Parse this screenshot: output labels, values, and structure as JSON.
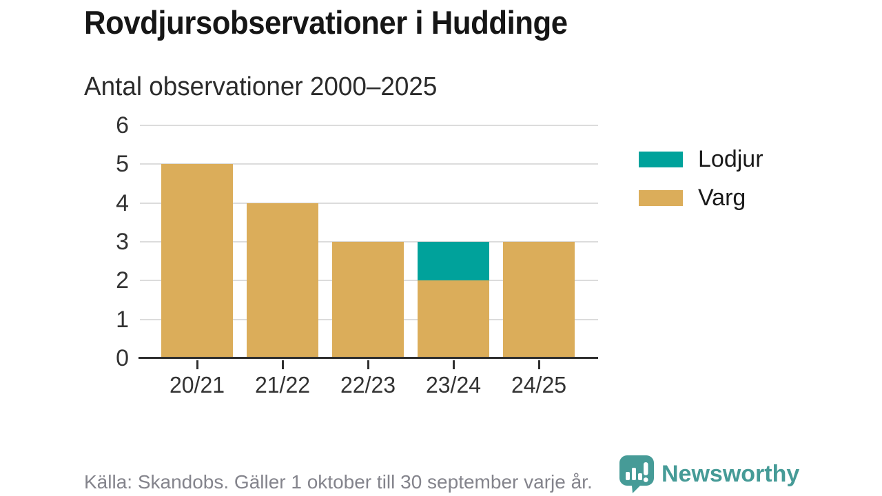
{
  "header": {
    "title": "Rovdjursobservationer i Huddinge",
    "subtitle": "Antal observationer 2000–2025"
  },
  "chart_data": {
    "type": "bar",
    "stacked": true,
    "title": "Rovdjursobservationer i Huddinge",
    "subtitle": "Antal observationer 2000–2025",
    "xlabel": "",
    "ylabel": "",
    "categories": [
      "20/21",
      "21/22",
      "22/23",
      "23/24",
      "24/25"
    ],
    "series": [
      {
        "name": "Varg",
        "color": "#dbad5a",
        "values": [
          5,
          4,
          3,
          2,
          3
        ]
      },
      {
        "name": "Lodjur",
        "color": "#00a29b",
        "values": [
          0,
          0,
          0,
          1,
          0
        ]
      }
    ],
    "totals": [
      5,
      4,
      3,
      3,
      3
    ],
    "ylim": [
      0,
      6
    ],
    "yticks": [
      0,
      1,
      2,
      3,
      4,
      5,
      6
    ],
    "grid": true,
    "legend_position": "right",
    "legend_order": [
      "Lodjur",
      "Varg"
    ]
  },
  "footer": {
    "source": "Källa: Skandobs. Gäller 1 oktober till 30 september varje år.",
    "brand": "Newsworthy"
  },
  "colors": {
    "lodjur": "#00a29b",
    "varg": "#dbad5a",
    "gridline": "#dcdcdc",
    "axis": "#2f2f2f",
    "brand_teal": "#469b97"
  }
}
